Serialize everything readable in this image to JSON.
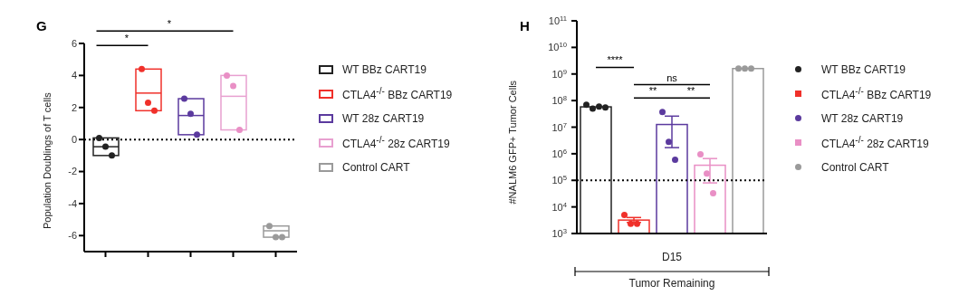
{
  "chart_data": [
    {
      "type": "box",
      "title": "G",
      "ylabel": "Population Doublings of T cells",
      "categories": [
        null,
        null,
        null,
        null,
        null
      ],
      "ylim": [
        -7,
        6
      ],
      "yticks": [
        -6,
        -4,
        -2,
        0,
        2,
        4,
        6
      ],
      "tick_labels": "y",
      "legend": "right",
      "annotations": [
        "*",
        "*"
      ],
      "ref_lines": [
        {
          "axis": "y",
          "value": 0,
          "line_style": "dotted",
          "color": "#000000"
        }
      ],
      "series": [
        {
          "name": "WT BBz CART19",
          "color": "#222222",
          "boxes": [
            {
              "low": -1.0,
              "q1": -1.0,
              "median": -0.45,
              "q3": 0.1,
              "high": 0.1
            },
            null,
            null,
            null,
            null
          ]
        },
        {
          "name": "CTLA4$^{-/-}$ BBz CART19",
          "color": "#f0302a",
          "boxes": [
            null,
            {
              "low": 1.8,
              "q1": 1.8,
              "median": 2.9,
              "q3": 4.4,
              "high": 4.4
            },
            null,
            null,
            null
          ]
        },
        {
          "name": "WT 28z CART19",
          "color": "#5b3a9e",
          "boxes": [
            null,
            null,
            {
              "low": 0.3,
              "q1": 0.3,
              "median": 1.5,
              "q3": 2.55,
              "high": 2.55
            },
            null,
            null
          ]
        },
        {
          "name": "CTLA4$^{-/-}$ 28z CART19",
          "color": "#e8a0d0",
          "boxes": [
            null,
            null,
            null,
            {
              "low": 0.6,
              "q1": 0.6,
              "median": 2.7,
              "q3": 4.0,
              "high": 4.0
            },
            null
          ]
        },
        {
          "name": "Control CART",
          "color": "#9a9a9a",
          "boxes": [
            null,
            null,
            null,
            null,
            {
              "low": -6.1,
              "q1": -6.1,
              "median": -5.7,
              "q3": -5.4,
              "high": -5.4
            }
          ]
        },
        {
          "type": "scatter",
          "colors": [
            "#222222",
            "#f0302a",
            "#5b3a9e",
            "#e98fc5",
            "#9a9a9a"
          ],
          "values": [
            0.1,
            4.4,
            2.55,
            4.0,
            -5.4
          ]
        },
        {
          "type": "scatter",
          "colors": [
            "#222222",
            "#f0302a",
            "#5b3a9e",
            "#e98fc5",
            "#9a9a9a"
          ],
          "values": [
            -0.45,
            2.3,
            1.6,
            3.35,
            -6.1
          ]
        },
        {
          "type": "scatter",
          "colors": [
            "#222222",
            "#f0302a",
            "#5b3a9e",
            "#e98fc5",
            "#9a9a9a"
          ],
          "values": [
            -1.0,
            1.8,
            0.3,
            0.6,
            -6.1
          ]
        }
      ]
    },
    {
      "type": "bar",
      "title": "H",
      "ylabel": "#NALM6 GFP+ Tumor Cells",
      "xlabel": "D15",
      "categories": [
        null,
        null,
        null,
        null,
        null
      ],
      "log": "y",
      "ylim": [
        1000,
        100000000000
      ],
      "yticks": [
        {
          "value": 1000,
          "label": "10$^{3}$"
        },
        {
          "value": 10000,
          "label": "10$^{4}$"
        },
        {
          "value": 100000,
          "label": "10$^{5}$"
        },
        {
          "value": 1000000,
          "label": "10$^{6}$"
        },
        {
          "value": 10000000,
          "label": "10$^{7}$"
        },
        {
          "value": 100000000,
          "label": "10$^{8}$"
        },
        {
          "value": 1000000000,
          "label": "10$^{9}$"
        },
        {
          "value": 10000000000,
          "label": "10$^{10}$"
        },
        {
          "value": 100000000000,
          "label": "10$^{11}$"
        }
      ],
      "tick_labels": "y",
      "legend": "right",
      "annotations": [
        "****",
        "ns",
        "**",
        "**",
        "Tumor Remaining"
      ],
      "ref_lines": [
        {
          "axis": "y",
          "value": 100000,
          "line_style": "dotted",
          "color": "#000000"
        }
      ],
      "series": [
        {
          "name": "WT BBz CART19",
          "color": "#222222",
          "values": [
            58000000,
            null,
            null,
            null,
            null
          ]
        },
        {
          "name": "CTLA4$^{-/-}$ BBz CART19",
          "color": "#f0302a",
          "values": [
            null,
            3200,
            null,
            null,
            null
          ],
          "errors": [
            null,
            [
              2600,
              4000
            ],
            null,
            null,
            null
          ]
        },
        {
          "name": "WT 28z CART19",
          "color": "#5b3a9e",
          "values": [
            null,
            null,
            12600000,
            null,
            null
          ],
          "errors": [
            null,
            null,
            [
              1700000,
              26000000
            ],
            null,
            null
          ]
        },
        {
          "name": "CTLA4$^{-/-}$ 28z CART19",
          "color": "#e98fc5",
          "values": [
            null,
            null,
            null,
            370000,
            null
          ],
          "errors": [
            null,
            null,
            null,
            [
              80000,
              660000
            ],
            null
          ]
        },
        {
          "name": "Control CART",
          "color": "#9a9a9a",
          "values": [
            null,
            null,
            null,
            null,
            1600000000
          ]
        },
        {
          "type": "scatter",
          "colors": [
            "#222222",
            "#f0302a",
            "#5b3a9e",
            "#e98fc5",
            "#9a9a9a"
          ],
          "values": [
            70000000,
            5000,
            37000000,
            950000,
            1600000000
          ]
        },
        {
          "type": "scatter",
          "colors": [
            "#222222",
            "#f0302a",
            "#5b3a9e",
            "#e98fc5",
            "#9a9a9a"
          ],
          "values": [
            50000000,
            2300,
            2800000,
            180000,
            1600000000
          ]
        },
        {
          "type": "scatter",
          "colors": [
            "#222222",
            "#f0302a",
            "#5b3a9e",
            "#e98fc5",
            "#9a9a9a"
          ],
          "values": [
            60000000,
            2300,
            590000,
            33000,
            1600000000
          ]
        },
        {
          "type": "scatter",
          "colors": [
            "#222222",
            "#f0302a",
            "#5b3a9e",
            "#e98fc5",
            "#9a9a9a"
          ],
          "values": [
            55000000,
            null,
            null,
            null,
            null
          ]
        }
      ]
    }
  ]
}
